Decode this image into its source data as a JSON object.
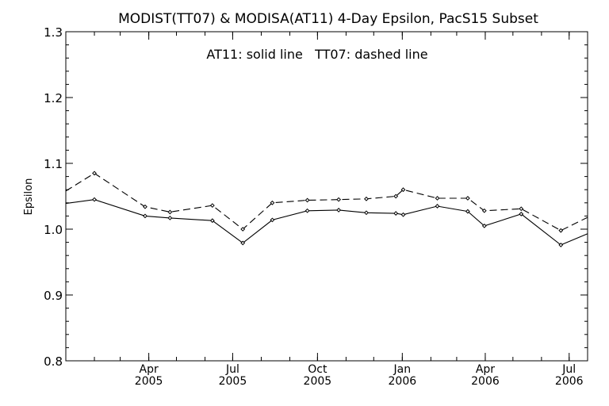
{
  "chart_data": {
    "type": "line",
    "title": "MODIST(TT07) & MODISA(AT11) 4-Day Epsilon, PacS15 Subset",
    "annotation": "AT11: solid line   TT07: dashed line",
    "ylabel": "Epsilon",
    "xlabel": "",
    "ylim": [
      0.8,
      1.3
    ],
    "xlim": [
      "2005-01-01",
      "2006-07-21"
    ],
    "y_ticks": [
      "0.8",
      "0.9",
      "1.0",
      "1.1",
      "1.2",
      "1.3"
    ],
    "x_ticks": [
      {
        "date": "2005-04-01",
        "month": "Apr",
        "year": "2005"
      },
      {
        "date": "2005-07-01",
        "month": "Jul",
        "year": "2005"
      },
      {
        "date": "2005-10-01",
        "month": "Oct",
        "year": "2005"
      },
      {
        "date": "2006-01-01",
        "month": "Jan",
        "year": "2006"
      },
      {
        "date": "2006-04-01",
        "month": "Apr",
        "year": "2006"
      },
      {
        "date": "2006-07-01",
        "month": "Jul",
        "year": "2006"
      }
    ],
    "grid": false,
    "series": [
      {
        "name": "AT11",
        "line_style": "solid",
        "color": "#000000",
        "points": [
          {
            "x": "2005-01-01",
            "y": 1.039,
            "marker": false
          },
          {
            "x": "2005-02-01",
            "y": 1.045,
            "marker": true
          },
          {
            "x": "2005-03-28",
            "y": 1.02,
            "marker": true
          },
          {
            "x": "2005-04-24",
            "y": 1.017,
            "marker": true
          },
          {
            "x": "2005-06-09",
            "y": 1.013,
            "marker": true
          },
          {
            "x": "2005-07-12",
            "y": 0.979,
            "marker": true
          },
          {
            "x": "2005-08-13",
            "y": 1.014,
            "marker": true
          },
          {
            "x": "2005-09-20",
            "y": 1.028,
            "marker": true
          },
          {
            "x": "2005-10-24",
            "y": 1.029,
            "marker": true
          },
          {
            "x": "2005-11-23",
            "y": 1.025,
            "marker": true
          },
          {
            "x": "2005-12-25",
            "y": 1.024,
            "marker": true
          },
          {
            "x": "2006-01-02",
            "y": 1.022,
            "marker": true
          },
          {
            "x": "2006-02-08",
            "y": 1.035,
            "marker": true
          },
          {
            "x": "2006-03-13",
            "y": 1.027,
            "marker": true
          },
          {
            "x": "2006-03-31",
            "y": 1.005,
            "marker": true
          },
          {
            "x": "2006-05-10",
            "y": 1.023,
            "marker": true
          },
          {
            "x": "2006-06-22",
            "y": 0.976,
            "marker": true
          },
          {
            "x": "2006-07-21",
            "y": 0.993,
            "marker": false
          }
        ]
      },
      {
        "name": "TT07",
        "line_style": "dashed",
        "color": "#000000",
        "points": [
          {
            "x": "2005-01-01",
            "y": 1.058,
            "marker": false
          },
          {
            "x": "2005-02-01",
            "y": 1.085,
            "marker": true
          },
          {
            "x": "2005-03-28",
            "y": 1.034,
            "marker": true
          },
          {
            "x": "2005-04-24",
            "y": 1.026,
            "marker": true
          },
          {
            "x": "2005-06-09",
            "y": 1.036,
            "marker": true
          },
          {
            "x": "2005-07-12",
            "y": 1.0,
            "marker": true
          },
          {
            "x": "2005-08-13",
            "y": 1.04,
            "marker": true
          },
          {
            "x": "2005-09-20",
            "y": 1.044,
            "marker": true
          },
          {
            "x": "2005-10-24",
            "y": 1.045,
            "marker": true
          },
          {
            "x": "2005-11-23",
            "y": 1.046,
            "marker": true
          },
          {
            "x": "2005-12-25",
            "y": 1.05,
            "marker": true
          },
          {
            "x": "2006-01-02",
            "y": 1.06,
            "marker": true
          },
          {
            "x": "2006-02-08",
            "y": 1.047,
            "marker": true
          },
          {
            "x": "2006-03-13",
            "y": 1.047,
            "marker": true
          },
          {
            "x": "2006-03-31",
            "y": 1.028,
            "marker": true
          },
          {
            "x": "2006-05-10",
            "y": 1.031,
            "marker": true
          },
          {
            "x": "2006-06-22",
            "y": 0.998,
            "marker": true
          },
          {
            "x": "2006-07-21",
            "y": 1.018,
            "marker": false
          }
        ]
      }
    ]
  }
}
